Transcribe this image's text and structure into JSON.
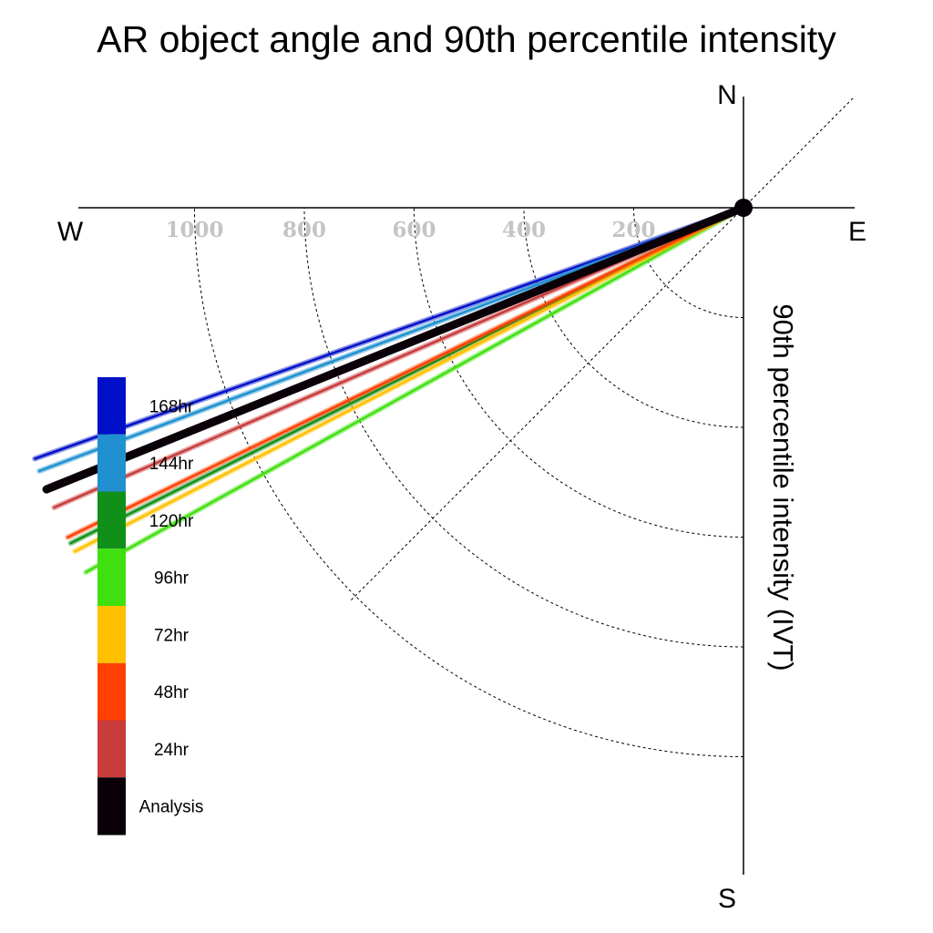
{
  "chart_data": {
    "type": "polar-vector",
    "title": "AR object angle and 90th percentile intensity",
    "axis_label": "90th percentile intensity (IVT)",
    "directions": {
      "north": "N",
      "south": "S",
      "east": "E",
      "west": "W"
    },
    "radial_ticks": [
      {
        "label": "200",
        "value": 200
      },
      {
        "label": "400",
        "value": 400
      },
      {
        "label": "600",
        "value": 600
      },
      {
        "label": "800",
        "value": 800
      },
      {
        "label": "1000",
        "value": 1000
      }
    ],
    "radial_range": [
      0,
      1200
    ],
    "series": [
      {
        "name": "168hr",
        "color": "#0010c8",
        "angle_deg": 250.5,
        "lead": 168
      },
      {
        "name": "144hr",
        "color": "#2090d0",
        "angle_deg": 249.5,
        "lead": 144
      },
      {
        "name": "120hr",
        "color": "#109018",
        "angle_deg": 243.5,
        "lead": 120
      },
      {
        "name": "96hr",
        "color": "#40e010",
        "angle_deg": 241.0,
        "lead": 96
      },
      {
        "name": "72hr",
        "color": "#ffc000",
        "angle_deg": 242.8,
        "lead": 72
      },
      {
        "name": "48hr",
        "color": "#ff4000",
        "angle_deg": 244.0,
        "lead": 48
      },
      {
        "name": "24hr",
        "color": "#c83c3c",
        "angle_deg": 246.5,
        "lead": 24
      },
      {
        "name": "Analysis",
        "color": "#0a0008",
        "angle_deg": 248.0,
        "lead": 0
      }
    ],
    "grid": true,
    "legend_position": "left"
  }
}
